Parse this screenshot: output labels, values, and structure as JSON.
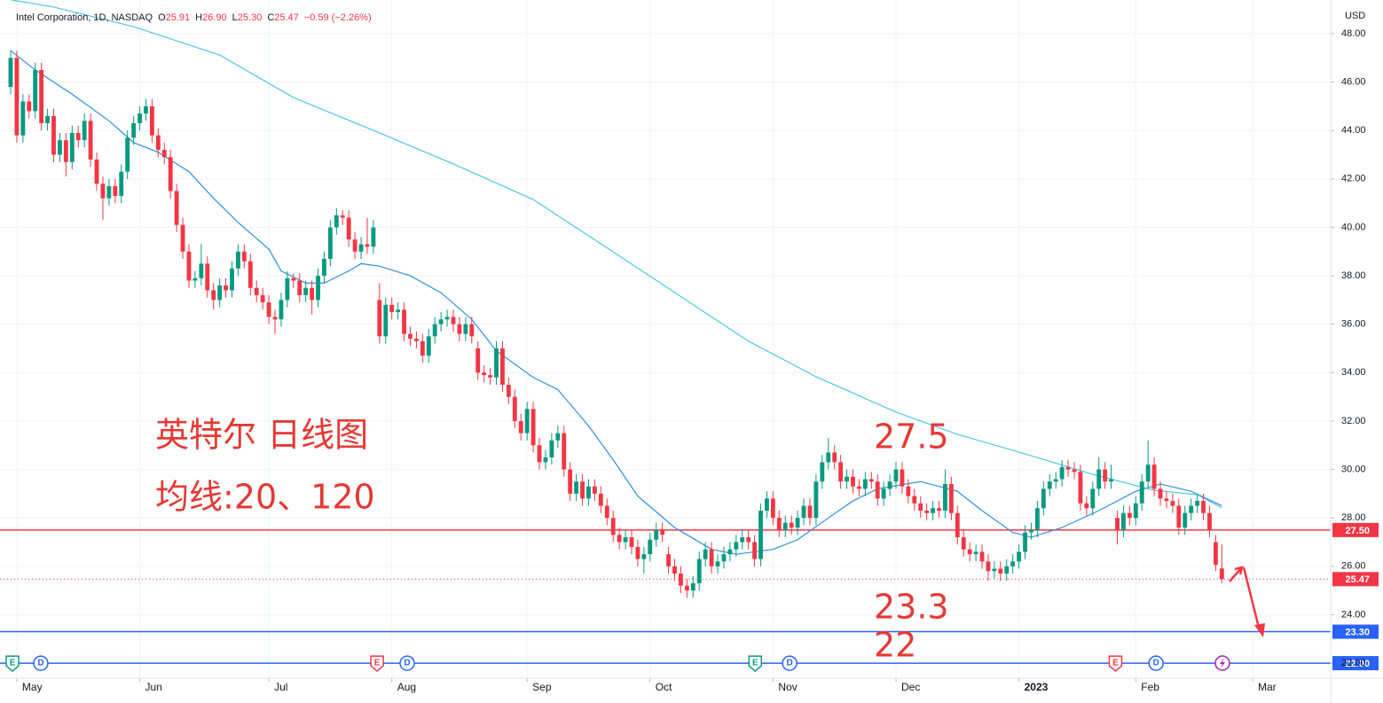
{
  "chart_data": {
    "type": "candlestick",
    "legend": {
      "name": "Intel Corporation, 1D, NASDAQ",
      "items": [
        {
          "key": "O",
          "text": "25.91"
        },
        {
          "key": "H",
          "text": "26.90"
        },
        {
          "key": "L",
          "text": "25.30"
        },
        {
          "key": "C",
          "text": "25.47"
        }
      ],
      "change": "−0.59 (−2.26%)"
    },
    "currency": "USD",
    "annotations": [
      "英特尔 日线图",
      "均线:20、120",
      "27.5",
      "23.3",
      "22"
    ],
    "up_color": "#089981",
    "down_color": "#f23645",
    "grid": true,
    "xlim": [
      -1.73,
      214.7
    ],
    "xticks": [
      {
        "value": 1,
        "label": "May"
      },
      {
        "value": 21,
        "label": "Jun"
      },
      {
        "value": 42,
        "label": "Jul"
      },
      {
        "value": 62,
        "label": "Aug"
      },
      {
        "value": 84,
        "label": "Sep"
      },
      {
        "value": 104,
        "label": "Oct"
      },
      {
        "value": 124,
        "label": "Nov"
      },
      {
        "value": 144,
        "label": "Dec"
      },
      {
        "value": 164,
        "label": "2023",
        "bold": true
      },
      {
        "value": 183,
        "label": "Feb"
      },
      {
        "value": 202,
        "label": "Mar"
      }
    ],
    "ylim": [
      21.38,
      49.39
    ],
    "yticks": [
      {
        "value": 22,
        "label": "22.00"
      },
      {
        "value": 24,
        "label": "24.00"
      },
      {
        "value": 26,
        "label": "26.00"
      },
      {
        "value": 28,
        "label": "28.00"
      },
      {
        "value": 30,
        "label": "30.00"
      },
      {
        "value": 32,
        "label": "32.00"
      },
      {
        "value": 34,
        "label": "34.00"
      },
      {
        "value": 36,
        "label": "36.00"
      },
      {
        "value": 38,
        "label": "38.00"
      },
      {
        "value": 40,
        "label": "40.00"
      },
      {
        "value": 42,
        "label": "42.00"
      },
      {
        "value": 44,
        "label": "44.00"
      },
      {
        "value": 46,
        "label": "46.00"
      },
      {
        "value": 48,
        "label": "48.00"
      }
    ],
    "candles": {
      "open": [
        45.8,
        47.0,
        43.8,
        45.2,
        44.8,
        46.5,
        44.3,
        44.6,
        43.0,
        43.6,
        42.7,
        43.9,
        43.6,
        44.4,
        42.8,
        41.8,
        41.2,
        41.7,
        41.3,
        42.3,
        43.7,
        44.3,
        44.7,
        45.0,
        43.8,
        43.2,
        42.9,
        41.5,
        40.1,
        39.0,
        37.8,
        37.9,
        38.5,
        37.4,
        37.0,
        37.6,
        37.4,
        38.3,
        39.0,
        38.6,
        37.5,
        37.2,
        36.9,
        36.3,
        36.2,
        37.0,
        37.9,
        37.8,
        37.2,
        37.5,
        37.0,
        38.0,
        38.7,
        40.0,
        40.5,
        40.4,
        39.5,
        39.0,
        39.3,
        39.2,
        37.0,
        35.5,
        36.8,
        36.5,
        36.6,
        35.6,
        35.4,
        35.3,
        34.7,
        35.5,
        36.0,
        36.2,
        36.3,
        36.0,
        35.6,
        36.0,
        35.0,
        34.0,
        33.9,
        33.8,
        35.0,
        33.5,
        33.0,
        32.0,
        31.5,
        32.5,
        31.0,
        30.3,
        30.5,
        31.2,
        31.5,
        30.0,
        29.0,
        29.5,
        28.8,
        29.3,
        29.0,
        28.5,
        28.0,
        27.3,
        27.0,
        27.2,
        26.8,
        26.3,
        26.5,
        27.1,
        27.5,
        26.5,
        26.0,
        25.7,
        25.2,
        25.0,
        25.3,
        26.3,
        26.7,
        26.0,
        26.2,
        26.5,
        26.7,
        27.0,
        27.2,
        27.0,
        26.3,
        28.3,
        28.8,
        28.0,
        27.5,
        27.8,
        27.6,
        28.0,
        28.5,
        28.0,
        29.5,
        30.3,
        30.7,
        30.3,
        29.5,
        29.7,
        29.3,
        29.2,
        29.6,
        29.5,
        28.8,
        29.2,
        29.5,
        30.0,
        29.3,
        28.9,
        28.6,
        28.3,
        28.2,
        28.4,
        28.3,
        29.4,
        28.2,
        27.2,
        26.7,
        26.5,
        26.6,
        26.2,
        25.8,
        25.9,
        25.7,
        26.0,
        26.2,
        26.6,
        27.4,
        27.5,
        28.4,
        29.2,
        29.5,
        29.6,
        30.1,
        30.0,
        29.9,
        28.6,
        28.4,
        29.2,
        30.0,
        29.5,
        28.0,
        27.5,
        28.2,
        28.0,
        28.6,
        29.5,
        30.2,
        29.2,
        28.8,
        28.7,
        28.5,
        27.6,
        28.2,
        28.5,
        28.7,
        28.2,
        27.0,
        25.91
      ],
      "high": [
        47.3,
        47.3,
        45.5,
        45.5,
        46.8,
        46.8,
        44.9,
        44.9,
        43.9,
        43.9,
        44.2,
        44.2,
        44.7,
        44.7,
        43.1,
        42.1,
        42.0,
        42.0,
        42.6,
        44.0,
        44.6,
        45.0,
        45.3,
        45.3,
        44.1,
        43.5,
        43.2,
        41.8,
        40.4,
        39.3,
        38.2,
        39.3,
        38.8,
        37.7,
        37.9,
        37.9,
        38.6,
        39.3,
        39.3,
        38.9,
        37.8,
        37.5,
        37.2,
        36.6,
        37.3,
        38.2,
        38.1,
        38.1,
        37.8,
        37.8,
        38.3,
        39.0,
        40.3,
        40.8,
        40.7,
        40.7,
        39.8,
        39.6,
        40.4,
        40.3,
        37.7,
        37.1,
        37.1,
        36.9,
        36.9,
        35.9,
        35.7,
        35.6,
        35.8,
        36.3,
        36.5,
        36.6,
        36.6,
        36.3,
        36.3,
        36.3,
        35.3,
        34.3,
        34.2,
        35.3,
        35.3,
        33.8,
        33.3,
        32.3,
        32.8,
        32.8,
        31.3,
        30.8,
        31.5,
        31.8,
        31.8,
        30.3,
        29.8,
        29.8,
        29.6,
        29.6,
        29.3,
        28.8,
        28.3,
        27.6,
        27.5,
        27.5,
        27.1,
        26.8,
        27.4,
        27.8,
        27.8,
        26.8,
        26.3,
        26.0,
        25.5,
        25.6,
        26.6,
        27.0,
        27.0,
        26.5,
        26.8,
        27.0,
        27.3,
        27.5,
        27.5,
        27.3,
        28.6,
        29.1,
        29.1,
        28.3,
        28.1,
        28.1,
        28.3,
        28.8,
        28.8,
        29.8,
        30.6,
        31.3,
        31.0,
        30.6,
        30.0,
        30.0,
        29.6,
        29.9,
        29.9,
        29.8,
        29.5,
        29.8,
        30.3,
        30.3,
        29.6,
        29.2,
        28.9,
        28.6,
        28.7,
        28.7,
        30.0,
        29.7,
        28.5,
        27.5,
        27.0,
        26.9,
        26.9,
        26.5,
        26.2,
        26.2,
        26.3,
        26.5,
        26.9,
        27.7,
        27.8,
        28.7,
        29.5,
        29.8,
        29.9,
        30.4,
        30.4,
        30.3,
        30.2,
        28.9,
        29.5,
        30.5,
        30.3,
        30.2,
        28.3,
        28.5,
        28.5,
        28.9,
        29.8,
        31.2,
        30.5,
        29.5,
        29.1,
        29.0,
        28.8,
        28.5,
        28.8,
        29.0,
        29.0,
        28.5,
        27.3,
        26.9
      ],
      "low": [
        45.5,
        43.5,
        43.5,
        44.5,
        44.5,
        44.0,
        44.0,
        42.7,
        42.7,
        42.1,
        42.4,
        43.3,
        43.3,
        42.5,
        41.5,
        40.3,
        40.9,
        41.0,
        41.0,
        42.0,
        43.4,
        44.0,
        44.4,
        43.5,
        42.9,
        42.6,
        41.2,
        39.8,
        38.7,
        37.5,
        37.5,
        37.6,
        37.1,
        36.6,
        36.7,
        37.1,
        37.1,
        38.0,
        38.3,
        37.2,
        36.9,
        36.6,
        36.0,
        35.6,
        35.9,
        36.7,
        37.5,
        36.9,
        36.9,
        36.4,
        36.7,
        37.7,
        38.4,
        39.7,
        40.1,
        39.2,
        38.7,
        38.7,
        38.9,
        38.9,
        35.2,
        35.2,
        36.2,
        36.2,
        35.3,
        35.1,
        35.0,
        34.4,
        34.4,
        35.2,
        35.7,
        35.9,
        35.7,
        35.3,
        35.3,
        35.2,
        33.7,
        33.6,
        33.5,
        33.5,
        33.2,
        32.7,
        31.7,
        31.2,
        31.2,
        30.7,
        30.0,
        30.0,
        30.2,
        30.9,
        29.7,
        28.7,
        28.7,
        28.5,
        28.5,
        28.7,
        28.2,
        27.7,
        27.0,
        26.7,
        26.7,
        26.5,
        26.0,
        25.7,
        26.2,
        26.8,
        27.0,
        25.7,
        25.4,
        24.9,
        24.7,
        24.7,
        25.0,
        26.0,
        25.7,
        25.7,
        25.9,
        26.2,
        26.4,
        26.7,
        26.7,
        26.0,
        26.0,
        28.0,
        27.7,
        27.2,
        27.2,
        27.3,
        27.3,
        27.7,
        27.7,
        27.7,
        29.2,
        30.0,
        30.0,
        29.2,
        29.2,
        29.0,
        28.9,
        28.9,
        29.2,
        28.5,
        28.5,
        28.9,
        29.2,
        29.0,
        28.6,
        28.3,
        28.0,
        27.9,
        27.9,
        28.0,
        28.0,
        27.9,
        26.9,
        26.4,
        26.2,
        26.2,
        25.9,
        25.4,
        25.5,
        25.4,
        25.4,
        25.7,
        25.9,
        26.3,
        27.1,
        27.2,
        28.1,
        28.9,
        29.2,
        29.3,
        29.7,
        29.6,
        28.3,
        28.1,
        28.1,
        28.9,
        29.2,
        29.2,
        26.9,
        27.2,
        27.7,
        27.7,
        28.3,
        29.2,
        28.9,
        28.5,
        28.4,
        28.2,
        27.3,
        27.3,
        27.9,
        28.2,
        27.9,
        27.2,
        25.8,
        25.3
      ],
      "close": [
        47.0,
        43.8,
        45.2,
        44.8,
        46.5,
        44.3,
        44.6,
        43.0,
        43.6,
        42.7,
        43.9,
        43.6,
        44.4,
        42.8,
        41.8,
        41.2,
        41.7,
        41.3,
        42.3,
        43.7,
        44.3,
        44.7,
        45.0,
        43.8,
        43.2,
        42.9,
        41.5,
        40.1,
        39.0,
        37.8,
        37.9,
        38.5,
        37.4,
        37.0,
        37.6,
        37.4,
        38.3,
        39.0,
        38.6,
        37.5,
        37.2,
        36.9,
        36.3,
        36.2,
        37.0,
        37.9,
        37.8,
        37.2,
        37.5,
        37.0,
        38.0,
        38.7,
        40.0,
        40.5,
        40.4,
        39.5,
        39.0,
        39.3,
        39.2,
        40.0,
        35.5,
        36.8,
        36.5,
        36.6,
        35.6,
        35.4,
        35.3,
        34.7,
        35.5,
        36.0,
        36.2,
        36.3,
        36.0,
        35.6,
        36.0,
        35.5,
        34.0,
        33.9,
        33.8,
        35.0,
        33.5,
        33.0,
        32.0,
        31.5,
        32.5,
        31.0,
        30.3,
        30.5,
        31.2,
        31.5,
        30.0,
        29.0,
        29.5,
        28.8,
        29.3,
        29.0,
        28.5,
        28.0,
        27.3,
        27.0,
        27.2,
        26.8,
        26.3,
        26.5,
        27.1,
        27.5,
        27.3,
        26.0,
        25.7,
        25.2,
        25.0,
        25.3,
        26.3,
        26.7,
        26.0,
        26.2,
        26.5,
        26.7,
        27.0,
        27.2,
        27.0,
        26.3,
        28.3,
        28.8,
        28.0,
        27.5,
        27.8,
        27.6,
        28.0,
        28.5,
        28.0,
        29.5,
        30.3,
        30.7,
        30.3,
        29.5,
        29.7,
        29.3,
        29.2,
        29.6,
        29.5,
        28.8,
        29.2,
        29.5,
        30.0,
        29.3,
        28.9,
        28.6,
        28.3,
        28.2,
        28.4,
        28.3,
        29.4,
        28.2,
        27.2,
        26.7,
        26.5,
        26.6,
        26.2,
        25.8,
        25.9,
        25.7,
        26.0,
        26.2,
        26.6,
        27.4,
        27.5,
        28.4,
        29.2,
        29.5,
        29.6,
        30.1,
        30.0,
        29.9,
        28.6,
        28.4,
        29.2,
        30.0,
        29.5,
        29.6,
        27.5,
        28.2,
        28.0,
        28.6,
        29.5,
        30.2,
        29.2,
        28.8,
        28.7,
        28.5,
        27.6,
        28.2,
        28.5,
        28.7,
        28.2,
        27.5,
        26.06,
        25.47
      ]
    },
    "series": [
      {
        "color": "#2f8fdf",
        "x": [
          0,
          4,
          10,
          16,
          20,
          24,
          29,
          33,
          37,
          42,
          44,
          48,
          51,
          55,
          57,
          60,
          65,
          70,
          75,
          79,
          85,
          89,
          94,
          98,
          102,
          108,
          114,
          118,
          124,
          128,
          133,
          137,
          141,
          148,
          154,
          158,
          163,
          166,
          171,
          177,
          183,
          187,
          192,
          197
        ],
        "values": [
          47.3,
          46.5,
          45.5,
          44.4,
          43.5,
          43.1,
          42.3,
          41.2,
          40.2,
          39.1,
          38.2,
          37.7,
          37.7,
          38.2,
          38.5,
          38.4,
          38.0,
          37.3,
          36.2,
          34.9,
          33.8,
          33.3,
          31.8,
          30.4,
          28.9,
          27.6,
          26.7,
          26.5,
          26.7,
          27.1,
          28.0,
          28.7,
          29.2,
          29.5,
          29.1,
          28.3,
          27.4,
          27.2,
          27.6,
          28.3,
          29.1,
          29.4,
          29.1,
          28.5
        ]
      },
      {
        "color": "#50c4e8",
        "x": [
          0,
          7,
          20,
          34,
          46,
          60,
          72,
          85,
          96,
          108,
          120,
          131,
          144,
          154,
          164,
          176,
          186,
          193,
          197
        ],
        "values": [
          49.4,
          49.1,
          48.29,
          47.12,
          45.36,
          43.9,
          42.62,
          41.15,
          39.32,
          37.31,
          35.3,
          33.83,
          32.37,
          31.45,
          30.72,
          29.8,
          29.14,
          28.96,
          28.41
        ]
      }
    ],
    "hlines": [
      {
        "value": 27.5,
        "label": "27.50",
        "color": "#f23645"
      },
      {
        "value": 23.3,
        "label": "23.30",
        "color": "#2962ff"
      },
      {
        "value": 22,
        "label": "22.00",
        "color": "#2962ff"
      }
    ],
    "last_price": {
      "value": 25.47,
      "label": "25.47",
      "color": "#f23645"
    },
    "events": [
      {
        "label": "E",
        "x": 0.3,
        "color": "#089981"
      },
      {
        "label": "D",
        "x": 4.9,
        "color": "#2962ff"
      },
      {
        "label": "E",
        "x": 59.6,
        "color": "#f23645"
      },
      {
        "label": "D",
        "x": 64.5,
        "color": "#2962ff"
      },
      {
        "label": "E",
        "x": 121.1,
        "color": "#089981"
      },
      {
        "label": "D",
        "x": 126.7,
        "color": "#2962ff"
      },
      {
        "label": "E",
        "x": 179.7,
        "color": "#f23645"
      },
      {
        "label": "D",
        "x": 186.3,
        "color": "#2962ff"
      }
    ]
  }
}
